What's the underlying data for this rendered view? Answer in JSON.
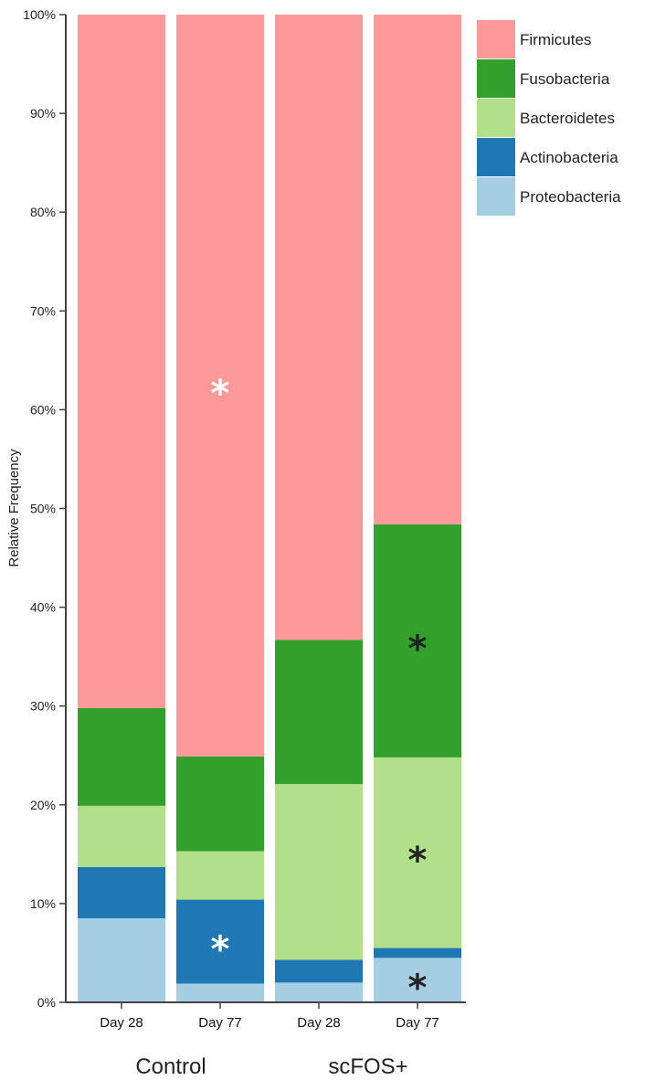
{
  "chart_data": {
    "type": "bar",
    "stacked": true,
    "ylabel": "Relative Frequency",
    "ylim": [
      0,
      100
    ],
    "y_ticks": [
      "0%",
      "10%",
      "20%",
      "30%",
      "40%",
      "50%",
      "60%",
      "70%",
      "80%",
      "90%",
      "100%"
    ],
    "y_tick_values": [
      0,
      10,
      20,
      30,
      40,
      50,
      60,
      70,
      80,
      90,
      100
    ],
    "categories": [
      "Day 28",
      "Day 77",
      "Day 28",
      "Day 77"
    ],
    "groups": [
      {
        "name": "Control",
        "categories": [
          0,
          1
        ]
      },
      {
        "name": "scFOS+",
        "categories": [
          2,
          3
        ]
      }
    ],
    "series": [
      {
        "name": "Proteobacteria",
        "color": "#a6cee3",
        "values": [
          8.5,
          1.9,
          2.0,
          4.5
        ]
      },
      {
        "name": "Actinobacteria",
        "color": "#1f78b4",
        "values": [
          5.2,
          8.5,
          2.3,
          1.0
        ]
      },
      {
        "name": "Bacteroidetes",
        "color": "#b2df8a",
        "values": [
          6.2,
          4.9,
          17.8,
          19.3
        ]
      },
      {
        "name": "Fusobacteria",
        "color": "#33a02c",
        "values": [
          9.9,
          9.6,
          14.6,
          23.6
        ]
      },
      {
        "name": "Firmicutes",
        "color": "#fb9a99",
        "values": [
          70.2,
          75.1,
          63.3,
          51.6
        ]
      }
    ],
    "legend": {
      "placement": "top-right",
      "order": [
        "Firmicutes",
        "Fusobacteria",
        "Bacteroidetes",
        "Actinobacteria",
        "Proteobacteria"
      ]
    },
    "annotations": [
      {
        "text": "*",
        "category": 1,
        "series": "Firmicutes",
        "color": "#ffffff"
      },
      {
        "text": "*",
        "category": 1,
        "series": "Actinobacteria",
        "color": "#ffffff"
      },
      {
        "text": "*",
        "category": 3,
        "series": "Fusobacteria",
        "color": "#222222"
      },
      {
        "text": "*",
        "category": 3,
        "series": "Bacteroidetes",
        "color": "#222222"
      },
      {
        "text": "*",
        "category": 3,
        "series": "Proteobacteria",
        "color": "#222222"
      }
    ]
  }
}
